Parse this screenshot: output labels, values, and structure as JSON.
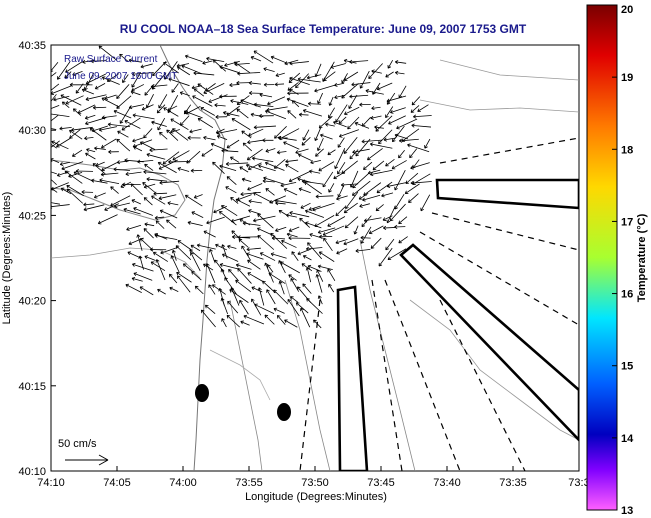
{
  "chart_data": {
    "type": "vector-field map",
    "title": "RU COOL  NOAA–18  Sea Surface Temperature:  June 09, 2007 1753 GMT",
    "overlay_lines": [
      "Raw Surface Current",
      "June 09, 2007 1600 GMT"
    ],
    "xlabel": "Longitude (Degrees:Minutes)",
    "ylabel": "Latitude (Degrees:Minutes)",
    "x_ticks": [
      "74:10",
      "74:05",
      "74:00",
      "73:55",
      "73:50",
      "73:45",
      "73:40",
      "73:35",
      "73:3"
    ],
    "y_ticks": [
      "40:35",
      "40:30",
      "40:25",
      "40:20",
      "40:15",
      "40:10"
    ],
    "xlim": [
      "74:10",
      "73:30"
    ],
    "ylim": [
      "40:10",
      "40:35"
    ],
    "scale_label": "50 cm/s",
    "colorbar": {
      "label": "Temperature (°C)",
      "ticks": [
        "20",
        "19",
        "18",
        "17",
        "16",
        "15",
        "14",
        "13"
      ],
      "range": [
        13,
        20
      ]
    }
  }
}
